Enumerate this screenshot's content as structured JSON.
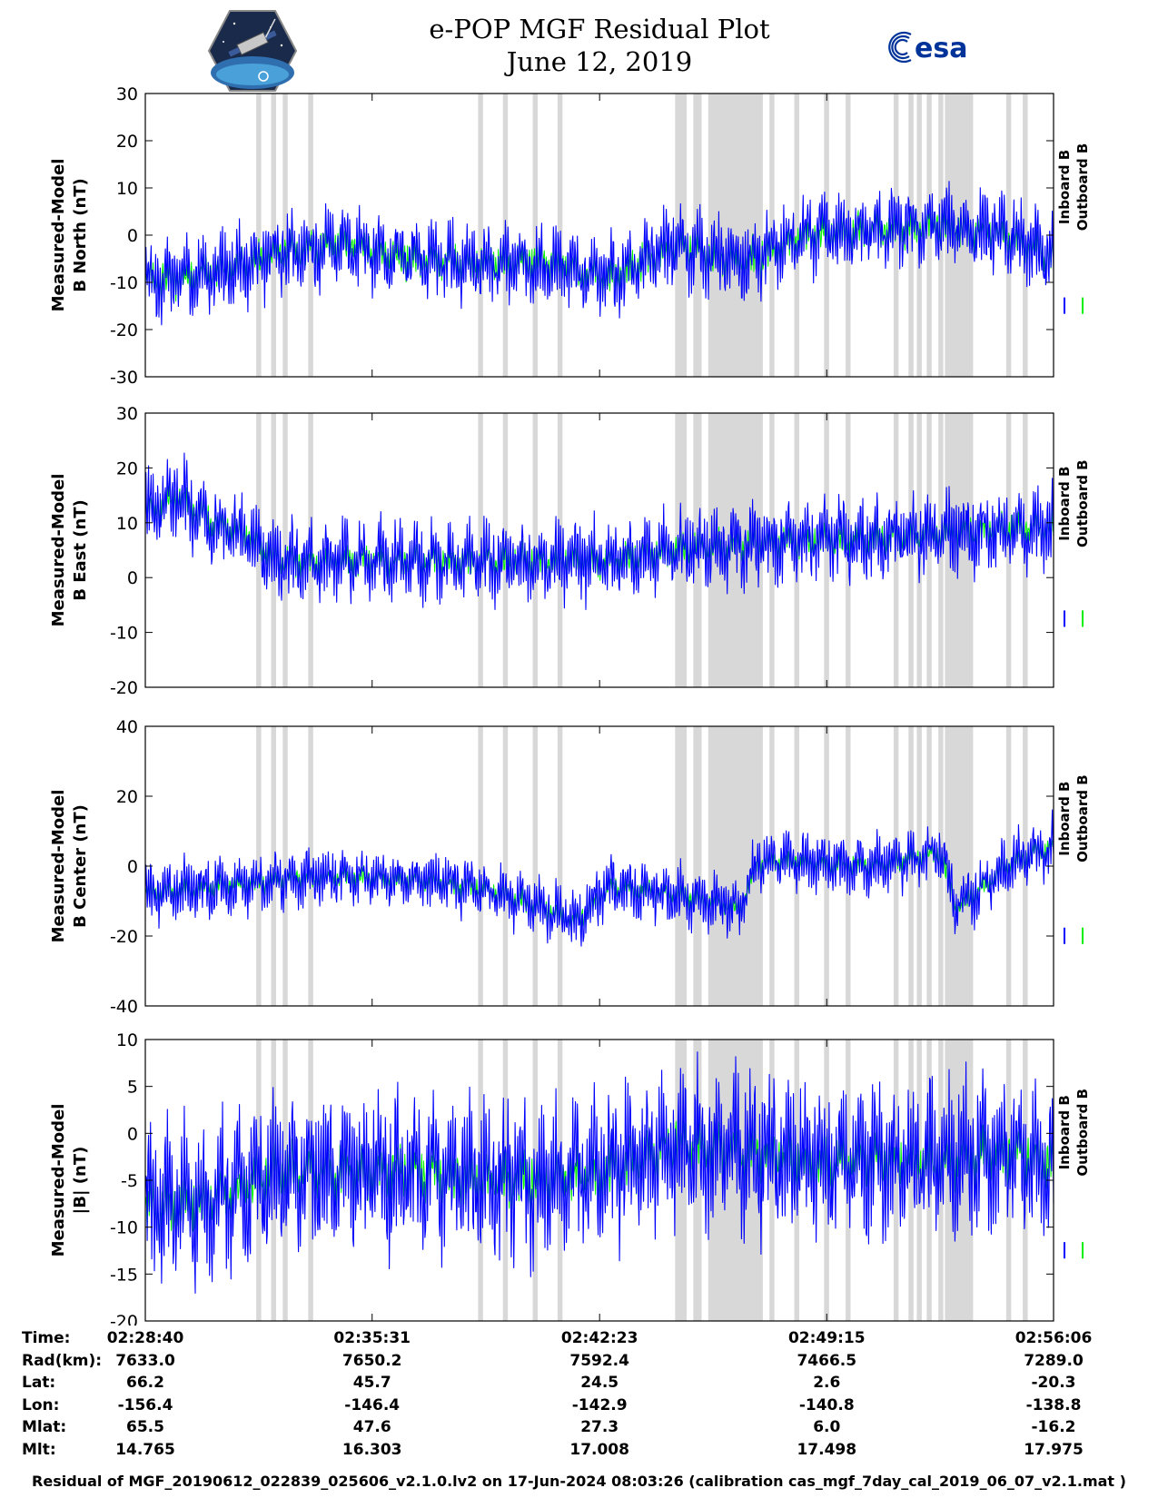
{
  "header": {
    "title": "e-POP MGF Residual Plot",
    "date": "June 12, 2019",
    "left_logo": "cassiope-mission-logo",
    "right_logo": "esa",
    "right_logo_text": "esa",
    "right_logo_color": "#003399"
  },
  "colors": {
    "inboard": "#0000ff",
    "outboard": "#00ee00",
    "gap_shading": "#d8d8d8"
  },
  "legend": {
    "inboard": "Inboard B",
    "outboard": "Outboard B"
  },
  "chart_data": [
    {
      "type": "line",
      "ylabel": [
        "Measured-Model",
        "B North (nT)"
      ],
      "ylim": [
        -30,
        30
      ],
      "yticks": [
        30,
        20,
        10,
        0,
        -10,
        -20,
        -30
      ],
      "xlim_minutes": [
        0,
        27.43
      ],
      "series": [
        {
          "name": "Inboard B",
          "baseline_x": [
            0,
            2,
            4,
            6,
            8,
            10,
            12,
            14,
            16,
            18,
            20,
            22,
            24,
            26,
            27.4
          ],
          "baseline_y": [
            -10,
            -8,
            -4,
            -2,
            -5,
            -6,
            -6,
            -9,
            -2,
            -6,
            0,
            1,
            2,
            0,
            -5
          ],
          "amplitude": 8
        },
        {
          "name": "Outboard B",
          "baseline_x": [
            0,
            2,
            4,
            6,
            8,
            10,
            12,
            14,
            16,
            18,
            20,
            22,
            24,
            26,
            27.4
          ],
          "baseline_y": [
            -10,
            -8,
            -4,
            -2,
            -5,
            -6,
            -6,
            -9,
            -2,
            -6,
            0,
            1,
            2,
            0,
            -5
          ],
          "amplitude": 4
        }
      ]
    },
    {
      "type": "line",
      "ylabel": [
        "Measured-Model",
        "B East (nT)"
      ],
      "ylim": [
        -20,
        30
      ],
      "yticks": [
        30,
        20,
        10,
        0,
        -10,
        -20
      ],
      "xlim_minutes": [
        0,
        27.43
      ],
      "series": [
        {
          "name": "Inboard B",
          "baseline_x": [
            0,
            1,
            2,
            3,
            4,
            6,
            8,
            10,
            12,
            14,
            16,
            18,
            20,
            22,
            24,
            26,
            27.4
          ],
          "baseline_y": [
            12,
            15,
            10,
            8,
            3,
            3,
            3,
            3,
            3,
            3,
            5,
            6,
            7,
            7,
            8,
            9,
            9
          ],
          "amplitude": 7
        },
        {
          "name": "Outboard B",
          "baseline_x": [
            0,
            1,
            2,
            3,
            4,
            6,
            8,
            10,
            12,
            14,
            16,
            18,
            20,
            22,
            24,
            26,
            27.4
          ],
          "baseline_y": [
            12,
            15,
            10,
            8,
            3,
            3,
            3,
            3,
            3,
            3,
            5,
            6,
            7,
            7,
            8,
            9,
            9
          ],
          "amplitude": 3
        }
      ]
    },
    {
      "type": "line",
      "ylabel": [
        "Measured-Model",
        "B Center (nT)"
      ],
      "ylim": [
        -40,
        40
      ],
      "yticks": [
        40,
        20,
        0,
        -20,
        -40
      ],
      "xlim_minutes": [
        0,
        27.43
      ],
      "series": [
        {
          "name": "Inboard B",
          "baseline_x": [
            0,
            2,
            4,
            6,
            8,
            10,
            12,
            13,
            14,
            16,
            18,
            18.5,
            20,
            22,
            24,
            24.5,
            26,
            27.4
          ],
          "baseline_y": [
            -8,
            -6,
            -4,
            -3,
            -4,
            -6,
            -12,
            -16,
            -6,
            -8,
            -12,
            2,
            1,
            0,
            4,
            -12,
            0,
            6
          ],
          "amplitude": 8
        },
        {
          "name": "Outboard B",
          "baseline_x": [
            0,
            2,
            4,
            6,
            8,
            10,
            12,
            13,
            14,
            16,
            18,
            18.5,
            20,
            22,
            24,
            24.5,
            26,
            27.4
          ],
          "baseline_y": [
            -8,
            -6,
            -4,
            -3,
            -4,
            -6,
            -12,
            -16,
            -6,
            -8,
            -12,
            2,
            1,
            0,
            4,
            -12,
            0,
            6
          ],
          "amplitude": 3
        }
      ]
    },
    {
      "type": "line",
      "ylabel": [
        "Measured-Model",
        "|B| (nT)"
      ],
      "ylim": [
        -20,
        10
      ],
      "yticks": [
        10,
        5,
        0,
        -5,
        -10,
        -15,
        -20
      ],
      "xlim_minutes": [
        0,
        27.43
      ],
      "series": [
        {
          "name": "Inboard B",
          "baseline_x": [
            0,
            2,
            4,
            6,
            8,
            10,
            12,
            14,
            16,
            18,
            20,
            22,
            24,
            26,
            27.4
          ],
          "baseline_y": [
            -8,
            -7,
            -4,
            -4,
            -4,
            -5,
            -5,
            -4,
            -1,
            -2,
            -3,
            -3,
            -3,
            -2,
            -3
          ],
          "amplitude": 8
        },
        {
          "name": "Outboard B",
          "baseline_x": [
            0,
            2,
            4,
            6,
            8,
            10,
            12,
            14,
            16,
            18,
            20,
            22,
            24,
            26,
            27.4
          ],
          "baseline_y": [
            -8,
            -7,
            -4,
            -4,
            -4,
            -5,
            -5,
            -4,
            -1,
            -2,
            -3,
            -3,
            -3,
            -2,
            -3
          ],
          "amplitude": 3
        }
      ]
    }
  ],
  "gap_intervals_minutes": [
    [
      3.35,
      3.5
    ],
    [
      3.8,
      3.95
    ],
    [
      4.15,
      4.3
    ],
    [
      4.92,
      5.07
    ],
    [
      10.05,
      10.2
    ],
    [
      10.8,
      10.95
    ],
    [
      11.7,
      11.85
    ],
    [
      12.45,
      12.6
    ],
    [
      16.0,
      16.35
    ],
    [
      16.55,
      16.8
    ],
    [
      17.0,
      18.65
    ],
    [
      18.85,
      19.0
    ],
    [
      19.6,
      19.75
    ],
    [
      20.5,
      20.65
    ],
    [
      21.15,
      21.3
    ],
    [
      22.6,
      22.75
    ],
    [
      23.05,
      23.2
    ],
    [
      23.3,
      23.45
    ],
    [
      23.6,
      23.75
    ],
    [
      23.95,
      24.1
    ],
    [
      24.15,
      25.0
    ],
    [
      26.0,
      26.15
    ],
    [
      26.5,
      26.65
    ]
  ],
  "orbit_table": {
    "labels": [
      "Time:",
      "Rad(km):",
      "Lat:",
      "Lon:",
      "Mlat:",
      "Mlt:"
    ],
    "columns": [
      [
        "02:28:40",
        "7633.0",
        "66.2",
        "-156.4",
        "65.5",
        "14.765"
      ],
      [
        "02:35:31",
        "7650.2",
        "45.7",
        "-146.4",
        "47.6",
        "16.303"
      ],
      [
        "02:42:23",
        "7592.4",
        "24.5",
        "-142.9",
        "27.3",
        "17.008"
      ],
      [
        "02:49:15",
        "7466.5",
        "2.6",
        "-140.8",
        "6.0",
        "17.498"
      ],
      [
        "02:56:06",
        "7289.0",
        "-20.3",
        "-138.8",
        "-16.2",
        "17.975"
      ]
    ]
  },
  "footer": "Residual of MGF_20190612_022839_025606_v2.1.0.lv2 on 17-Jun-2024 08:03:26 (calibration cas_mgf_7day_cal_2019_06_07_v2.1.mat )"
}
